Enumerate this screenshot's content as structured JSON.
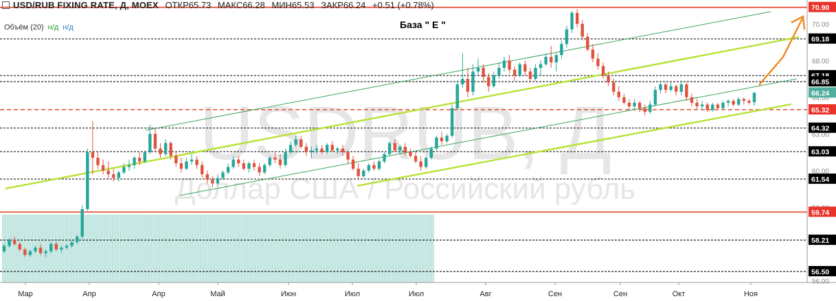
{
  "header": {
    "symbol": "USD/RUB FIXING RATE, Д, MOEX",
    "open": "ОТКР65.73",
    "high": "МАКС66.28",
    "low": "МИН65.53",
    "close": "ЗАКР66.24",
    "change": "+0.51 (+0.78%)"
  },
  "volume_label": "Объём (20)",
  "volume_v1": "н/д",
  "volume_v2": "н/д",
  "annotation": "База \" Е \"",
  "watermark": {
    "line1": "USDRUB, Д",
    "line2": "Доллар США / Российский рубль"
  },
  "colors": {
    "up": "#26a69a",
    "down": "#e0533f",
    "channel_thick": "#b9e23a",
    "channel_thin": "#3aa35a",
    "dashed": "#333333",
    "red_line": "#e5553c",
    "arrow": "#f08a24",
    "zone": "#8ecfc6",
    "current_tag": "#4fae9e"
  },
  "chart_data": {
    "type": "candlestick",
    "ylim": [
      55.9,
      71.3
    ],
    "x_tick_labels": [
      "Мар",
      "Апр",
      "Апр",
      "Май",
      "Июн",
      "Июл",
      "Июл",
      "Авг",
      "Сен",
      "Сен",
      "Окт",
      "Ноя"
    ],
    "y_tick_labels": [
      "70.00",
      "68.00",
      "64.00",
      "63.00",
      "62.00",
      "60.00",
      "56.00"
    ],
    "y_ticks_faint": [
      70.0,
      68.0,
      66.0,
      64.0,
      63.0,
      62.0,
      60.0,
      56.0
    ],
    "levels": [
      {
        "value": 70.9,
        "label": "70.90",
        "style": "red",
        "tag": "#e8332a"
      },
      {
        "value": 69.18,
        "label": "69.18",
        "style": "dashed",
        "tag": "#000000"
      },
      {
        "value": 67.18,
        "label": "67.18",
        "style": "dashed",
        "tag": "#000000"
      },
      {
        "value": 66.85,
        "label": "66.85",
        "style": "dashed",
        "tag": "#000000"
      },
      {
        "value": 66.24,
        "label": "66.24",
        "style": "current",
        "tag": "#4fae9e"
      },
      {
        "value": 65.32,
        "label": "65.32",
        "style": "reddashed",
        "tag": "#e8332a"
      },
      {
        "value": 64.32,
        "label": "64.32",
        "style": "dashed",
        "tag": "#000000"
      },
      {
        "value": 63.03,
        "label": "63.03",
        "style": "dashed",
        "tag": "#000000"
      },
      {
        "value": 61.54,
        "label": "61.54",
        "style": "dashed",
        "tag": "#000000"
      },
      {
        "value": 59.74,
        "label": "59.74",
        "style": "red",
        "tag": "#e8332a"
      },
      {
        "value": 58.21,
        "label": "58.21",
        "style": "dashed",
        "tag": "#000000"
      },
      {
        "value": 56.5,
        "label": "56.50",
        "style": "dashed",
        "tag": "#000000"
      }
    ],
    "series": [
      {
        "values": [
          [
            57.6,
            58.0,
            57.5,
            57.9
          ],
          [
            57.9,
            58.3,
            57.8,
            58.2
          ],
          [
            58.2,
            58.4,
            57.9,
            58.0
          ],
          [
            58.0,
            58.1,
            57.6,
            57.7
          ],
          [
            57.7,
            57.8,
            57.3,
            57.4
          ],
          [
            57.4,
            57.7,
            57.3,
            57.6
          ],
          [
            57.6,
            57.9,
            57.5,
            57.8
          ],
          [
            57.8,
            58.0,
            57.4,
            57.5
          ],
          [
            57.5,
            57.7,
            57.3,
            57.6
          ],
          [
            57.6,
            58.1,
            57.5,
            58.0
          ],
          [
            58.0,
            58.1,
            57.6,
            57.7
          ],
          [
            57.7,
            57.9,
            57.5,
            57.8
          ],
          [
            57.8,
            58.0,
            57.7,
            57.9
          ],
          [
            57.9,
            58.2,
            57.8,
            58.1
          ],
          [
            58.1,
            58.5,
            58.0,
            58.4
          ],
          [
            58.4,
            60.1,
            58.3,
            59.9
          ],
          [
            59.9,
            63.2,
            59.8,
            63.0
          ],
          [
            63.0,
            64.7,
            61.8,
            62.7
          ],
          [
            62.7,
            63.0,
            62.1,
            62.3
          ],
          [
            62.3,
            62.6,
            61.8,
            62.0
          ],
          [
            62.0,
            62.5,
            61.5,
            61.8
          ],
          [
            61.8,
            62.1,
            61.4,
            61.6
          ],
          [
            61.6,
            62.0,
            61.4,
            61.9
          ],
          [
            61.9,
            62.4,
            61.8,
            62.2
          ],
          [
            62.2,
            62.6,
            62.0,
            62.3
          ],
          [
            62.3,
            62.8,
            62.1,
            62.7
          ],
          [
            62.7,
            63.0,
            62.3,
            62.5
          ],
          [
            62.5,
            63.1,
            62.4,
            63.0
          ],
          [
            63.0,
            64.5,
            62.9,
            64.0
          ],
          [
            64.0,
            64.3,
            63.0,
            63.2
          ],
          [
            63.2,
            63.5,
            62.7,
            62.9
          ],
          [
            62.9,
            63.7,
            62.8,
            63.5
          ],
          [
            63.5,
            63.6,
            62.6,
            62.8
          ],
          [
            62.8,
            63.0,
            62.2,
            62.4
          ],
          [
            62.4,
            62.7,
            61.9,
            62.1
          ],
          [
            62.1,
            62.7,
            62.0,
            62.5
          ],
          [
            62.5,
            62.9,
            62.3,
            62.6
          ],
          [
            62.6,
            62.8,
            62.1,
            62.3
          ],
          [
            62.3,
            62.5,
            61.6,
            61.8
          ],
          [
            61.8,
            62.0,
            61.3,
            61.5
          ],
          [
            61.5,
            61.7,
            61.1,
            61.3
          ],
          [
            61.3,
            61.8,
            61.2,
            61.6
          ],
          [
            61.6,
            62.0,
            61.5,
            61.9
          ],
          [
            61.9,
            62.4,
            61.8,
            62.2
          ],
          [
            62.2,
            62.8,
            62.1,
            62.6
          ],
          [
            62.6,
            62.8,
            62.2,
            62.4
          ],
          [
            62.4,
            62.6,
            62.0,
            62.1
          ],
          [
            62.1,
            62.5,
            61.9,
            62.4
          ],
          [
            62.4,
            62.6,
            62.0,
            62.2
          ],
          [
            62.2,
            62.4,
            61.7,
            61.9
          ],
          [
            61.9,
            62.4,
            61.8,
            62.3
          ],
          [
            62.3,
            62.8,
            62.2,
            62.7
          ],
          [
            62.7,
            63.0,
            62.4,
            62.6
          ],
          [
            62.6,
            62.9,
            62.1,
            62.3
          ],
          [
            62.3,
            63.2,
            62.2,
            63.0
          ],
          [
            63.0,
            63.6,
            62.9,
            63.4
          ],
          [
            63.4,
            63.9,
            63.3,
            63.7
          ],
          [
            63.7,
            63.9,
            63.2,
            63.3
          ],
          [
            63.3,
            63.5,
            62.8,
            63.0
          ],
          [
            63.0,
            63.3,
            62.7,
            63.1
          ],
          [
            63.1,
            63.4,
            62.9,
            63.2
          ],
          [
            63.2,
            63.4,
            62.9,
            63.0
          ],
          [
            63.0,
            63.5,
            62.9,
            63.4
          ],
          [
            63.4,
            63.6,
            63.0,
            63.1
          ],
          [
            63.1,
            63.3,
            62.9,
            63.2
          ],
          [
            63.2,
            63.4,
            62.8,
            63.0
          ],
          [
            63.0,
            63.1,
            62.4,
            62.6
          ],
          [
            62.6,
            62.8,
            62.0,
            62.1
          ],
          [
            62.1,
            62.4,
            61.5,
            61.7
          ],
          [
            61.7,
            62.1,
            61.6,
            62.0
          ],
          [
            62.0,
            62.4,
            61.9,
            62.3
          ],
          [
            62.3,
            62.5,
            62.0,
            62.1
          ],
          [
            62.1,
            62.6,
            62.0,
            62.5
          ],
          [
            62.5,
            63.0,
            62.4,
            62.9
          ],
          [
            62.9,
            63.6,
            62.8,
            63.5
          ],
          [
            63.5,
            63.7,
            63.0,
            63.1
          ],
          [
            63.1,
            63.4,
            62.9,
            63.3
          ],
          [
            63.3,
            63.5,
            62.8,
            63.0
          ],
          [
            63.0,
            63.2,
            62.7,
            62.8
          ],
          [
            62.8,
            63.0,
            62.4,
            62.5
          ],
          [
            62.5,
            62.8,
            62.0,
            62.2
          ],
          [
            62.2,
            62.8,
            62.1,
            62.7
          ],
          [
            62.7,
            63.3,
            62.6,
            63.2
          ],
          [
            63.2,
            63.9,
            63.1,
            63.8
          ],
          [
            63.8,
            64.1,
            63.4,
            63.6
          ],
          [
            63.6,
            64.0,
            63.5,
            63.9
          ],
          [
            63.9,
            65.6,
            63.8,
            65.4
          ],
          [
            65.4,
            66.9,
            65.3,
            66.7
          ],
          [
            66.7,
            68.4,
            66.5,
            67.0
          ],
          [
            67.0,
            67.6,
            66.0,
            66.3
          ],
          [
            66.3,
            67.8,
            66.1,
            67.4
          ],
          [
            67.4,
            68.1,
            67.2,
            67.6
          ],
          [
            67.6,
            67.8,
            66.8,
            67.1
          ],
          [
            67.1,
            67.3,
            66.3,
            66.6
          ],
          [
            66.6,
            67.4,
            66.5,
            67.2
          ],
          [
            67.2,
            67.9,
            67.0,
            67.6
          ],
          [
            67.6,
            68.2,
            67.4,
            68.0
          ],
          [
            68.0,
            68.3,
            67.3,
            67.5
          ],
          [
            67.5,
            67.7,
            66.9,
            67.2
          ],
          [
            67.2,
            67.9,
            67.1,
            67.8
          ],
          [
            67.8,
            68.0,
            67.2,
            67.4
          ],
          [
            67.4,
            67.6,
            66.8,
            67.0
          ],
          [
            67.0,
            67.8,
            66.9,
            67.6
          ],
          [
            67.6,
            68.0,
            67.2,
            67.8
          ],
          [
            67.8,
            68.4,
            67.7,
            68.2
          ],
          [
            68.2,
            68.8,
            67.6,
            67.9
          ],
          [
            67.9,
            68.4,
            67.4,
            68.3
          ],
          [
            68.3,
            69.1,
            68.1,
            68.9
          ],
          [
            68.9,
            69.9,
            68.7,
            69.7
          ],
          [
            69.7,
            70.7,
            69.5,
            70.6
          ],
          [
            70.6,
            70.8,
            69.8,
            70.0
          ],
          [
            70.0,
            70.2,
            69.1,
            69.3
          ],
          [
            69.3,
            69.5,
            68.5,
            68.6
          ],
          [
            68.6,
            68.9,
            67.9,
            68.1
          ],
          [
            68.1,
            68.4,
            67.5,
            67.7
          ],
          [
            67.7,
            67.9,
            67.0,
            67.2
          ],
          [
            67.2,
            67.4,
            66.6,
            66.8
          ],
          [
            66.8,
            67.0,
            66.1,
            66.3
          ],
          [
            66.3,
            66.6,
            65.8,
            66.0
          ],
          [
            66.0,
            66.2,
            65.6,
            65.7
          ],
          [
            65.7,
            65.9,
            65.3,
            65.5
          ],
          [
            65.5,
            65.9,
            65.3,
            65.7
          ],
          [
            65.7,
            65.8,
            65.2,
            65.4
          ],
          [
            65.4,
            65.6,
            65.0,
            65.2
          ],
          [
            65.2,
            65.8,
            65.1,
            65.6
          ],
          [
            65.6,
            66.6,
            65.5,
            66.4
          ],
          [
            66.4,
            66.9,
            66.2,
            66.7
          ],
          [
            66.7,
            66.8,
            66.2,
            66.4
          ],
          [
            66.4,
            66.8,
            66.3,
            66.6
          ],
          [
            66.6,
            66.7,
            66.1,
            66.3
          ],
          [
            66.3,
            66.9,
            66.1,
            66.7
          ],
          [
            66.7,
            66.8,
            65.8,
            66.0
          ],
          [
            66.0,
            66.2,
            65.5,
            65.7
          ],
          [
            65.7,
            65.9,
            65.3,
            65.5
          ],
          [
            65.5,
            65.8,
            65.3,
            65.6
          ],
          [
            65.6,
            65.7,
            65.2,
            65.3
          ],
          [
            65.3,
            65.7,
            65.2,
            65.6
          ],
          [
            65.6,
            65.7,
            65.3,
            65.4
          ],
          [
            65.4,
            65.8,
            65.3,
            65.7
          ],
          [
            65.7,
            65.9,
            65.5,
            65.8
          ],
          [
            65.8,
            65.9,
            65.5,
            65.6
          ],
          [
            65.6,
            66.0,
            65.5,
            65.9
          ],
          [
            65.9,
            66.0,
            65.6,
            65.8
          ],
          [
            65.8,
            65.9,
            65.6,
            65.7
          ],
          [
            65.73,
            66.28,
            65.53,
            66.24
          ]
        ]
      }
    ]
  }
}
